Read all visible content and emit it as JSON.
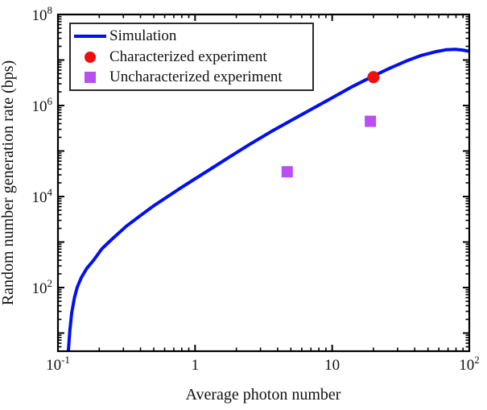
{
  "chart_data": {
    "type": "line",
    "title": "",
    "xlabel": "Average photon number",
    "ylabel": "Random number generation rate (bps)",
    "x_scale": "log",
    "y_scale": "log",
    "xlim": [
      0.1,
      100
    ],
    "ylim": [
      4,
      100000000
    ],
    "grid": false,
    "legend_position": "top-left",
    "x_ticks": [
      {
        "value": 0.1,
        "label": "10",
        "exp": "-1"
      },
      {
        "value": 1,
        "label": "1",
        "exp": ""
      },
      {
        "value": 10,
        "label": "10",
        "exp": ""
      },
      {
        "value": 100,
        "label": "10",
        "exp": "2"
      }
    ],
    "y_ticks": [
      {
        "value": 100,
        "label": "10",
        "exp": "2"
      },
      {
        "value": 10000,
        "label": "10",
        "exp": "4"
      },
      {
        "value": 1000000,
        "label": "10",
        "exp": "6"
      },
      {
        "value": 100000000,
        "label": "10",
        "exp": "8"
      }
    ],
    "series": [
      {
        "name": "Simulation",
        "type": "line",
        "marker": "line",
        "color": "#0010ee",
        "x": [
          0.119,
          0.122,
          0.126,
          0.132,
          0.138,
          0.148,
          0.162,
          0.182,
          0.209,
          0.251,
          0.316,
          0.398,
          0.501,
          0.631,
          0.794,
          1.0,
          1.32,
          1.78,
          2.51,
          3.55,
          5.01,
          7.08,
          10.0,
          14.1,
          20.0,
          26.3,
          35.5,
          44.7,
          56.2,
          67.6,
          79.4,
          89.1,
          100
        ],
        "y": [
          4.0,
          11,
          28,
          60,
          100,
          166,
          263,
          400,
          710,
          1200,
          2240,
          3800,
          6300,
          10000,
          15800,
          24500,
          41700,
          74000,
          141000,
          263000,
          468000,
          832000,
          1480000,
          2630000,
          4470000,
          6600000,
          9770000,
          12600000,
          15100000,
          16800000,
          17200000,
          16600000,
          15500000
        ]
      },
      {
        "name": "Characterized experiment",
        "type": "scatter",
        "marker": "circle",
        "color": "#ee0f0f",
        "x": [
          20
        ],
        "y": [
          4200000
        ]
      },
      {
        "name": "Uncharacterized experiment",
        "type": "scatter",
        "marker": "square",
        "color": "#b84ff2",
        "x": [
          4.7,
          19
        ],
        "y": [
          35000,
          450000
        ]
      }
    ]
  }
}
